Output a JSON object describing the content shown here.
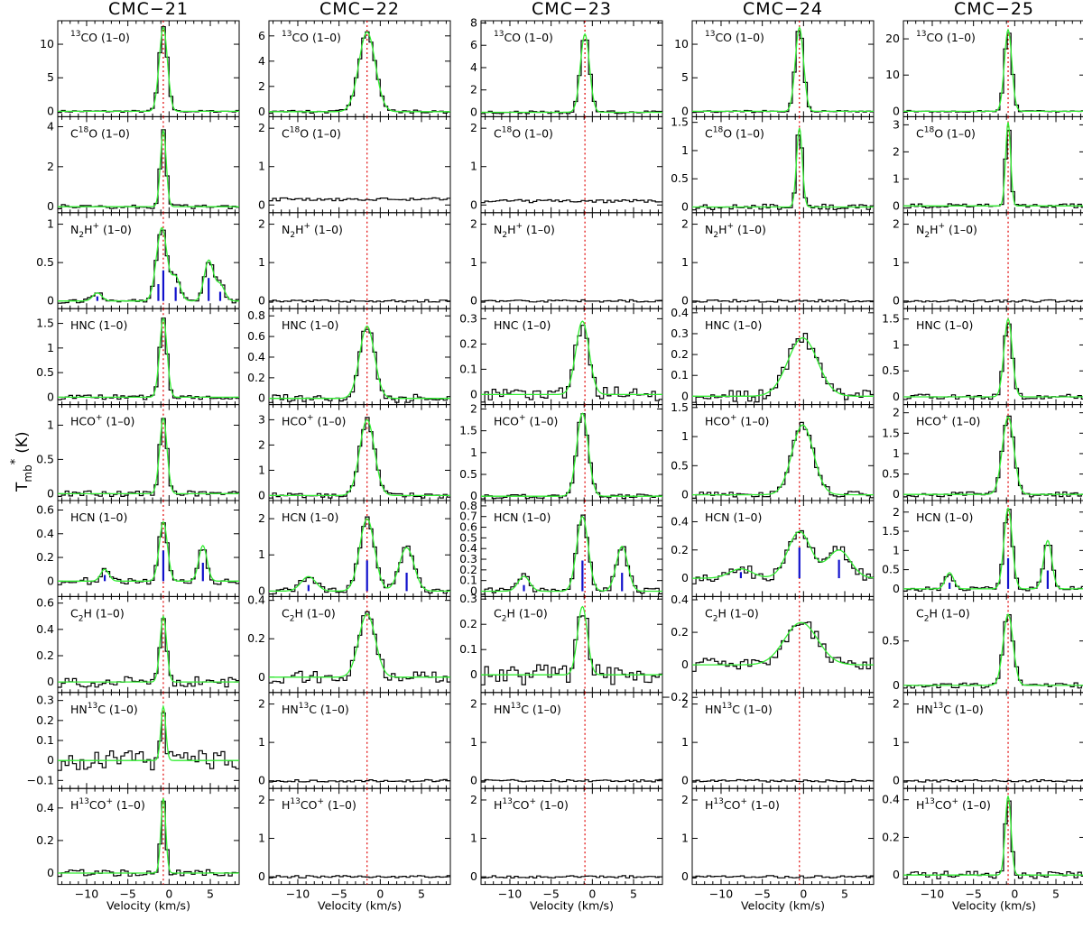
{
  "figure": {
    "y_label": "T",
    "y_label_sub": "mb",
    "y_label_sup": "*",
    "y_label_unit": "(K)",
    "x_label": "Velocity (km/s)",
    "colors": {
      "observed": "#000000",
      "fit": "#33ee33",
      "vsys_line": "#e00000",
      "hfs_components": "#1111cc"
    }
  },
  "chart_data": {
    "type": "line",
    "grid": false,
    "style": "step spectra with Gaussian / hyperfine fits",
    "xlim": [
      -13.5,
      8.5
    ],
    "x_ticks": [
      -10,
      -5,
      0,
      5
    ],
    "lines": [
      {
        "key": "13co",
        "label": [
          "",
          "13",
          "CO (1–0)"
        ]
      },
      {
        "key": "c18o",
        "label": [
          "C",
          "18",
          "O (1–0)"
        ]
      },
      {
        "key": "n2h",
        "label": [
          "N",
          "2",
          "H",
          "+",
          " (1–0)"
        ]
      },
      {
        "key": "hnc",
        "label": [
          "HNC (1–0)"
        ]
      },
      {
        "key": "hco",
        "label": [
          "HCO",
          "+",
          " (1–0)"
        ]
      },
      {
        "key": "hcn",
        "label": [
          "HCN (1–0)"
        ]
      },
      {
        "key": "c2h",
        "label": [
          "C",
          "2",
          "H (1–0)"
        ]
      },
      {
        "key": "hn13c",
        "label": [
          "HN",
          "13",
          "C (1–0)"
        ]
      },
      {
        "key": "h13co",
        "label": [
          "H",
          "13",
          "CO",
          "+",
          " (1–0)"
        ]
      }
    ],
    "sources": [
      {
        "name": "CMC−21",
        "vsys": -0.7,
        "spectra": {
          "13co": {
            "ylim": [
              -0.8,
              13.5
            ],
            "ticks": [
              0,
              5,
              10
            ],
            "fit": {
              "amp": 12.5,
              "v0": -0.7,
              "sigma": 0.5
            },
            "noise": 0.15
          },
          "c18o": {
            "ylim": [
              -0.3,
              4.5
            ],
            "ticks": [
              0,
              2,
              4
            ],
            "fit": {
              "amp": 3.8,
              "v0": -0.7,
              "sigma": 0.35
            },
            "noise": 0.1
          },
          "n2h": {
            "ylim": [
              -0.1,
              1.15
            ],
            "ticks": [
              0,
              0.5,
              1
            ],
            "hfs": true,
            "fit": {
              "amp": 0.7,
              "v0": -0.7,
              "sigma": 0.55
            },
            "noise": 0.03
          },
          "hnc": {
            "ylim": [
              -0.15,
              1.8
            ],
            "ticks": [
              0,
              0.5,
              1,
              1.5
            ],
            "fit": {
              "amp": 1.6,
              "v0": -0.7,
              "sigma": 0.45
            },
            "noise": 0.05
          },
          "hco": {
            "ylim": [
              -0.1,
              1.3
            ],
            "ticks": [
              0,
              0.5,
              1
            ],
            "fit": {
              "amp": 1.1,
              "v0": -0.7,
              "sigma": 0.45
            },
            "noise": 0.04
          },
          "hcn": {
            "ylim": [
              -0.13,
              0.68
            ],
            "ticks": [
              0,
              0.2,
              0.4,
              0.6
            ],
            "hfs": true,
            "fit": {
              "amp": 0.5,
              "v0": -0.7,
              "sigma": 0.5
            },
            "noise": 0.03
          },
          "c2h": {
            "ylim": [
              -0.08,
              0.65
            ],
            "ticks": [
              0,
              0.2,
              0.4,
              0.6
            ],
            "fit": {
              "amp": 0.5,
              "v0": -0.7,
              "sigma": 0.4
            },
            "noise": 0.04
          },
          "hn13c": {
            "ylim": [
              -0.14,
              0.34
            ],
            "ticks": [
              -0.1,
              0,
              0.1,
              0.2,
              0.3
            ],
            "fit": {
              "amp": 0.27,
              "v0": -0.7,
              "sigma": 0.3
            },
            "noise": 0.05
          },
          "h13co": {
            "ylim": [
              -0.07,
              0.52
            ],
            "ticks": [
              0,
              0.2,
              0.4
            ],
            "fit": {
              "amp": 0.46,
              "v0": -0.7,
              "sigma": 0.3
            },
            "noise": 0.02
          }
        }
      },
      {
        "name": "CMC−22",
        "vsys": -1.6,
        "spectra": {
          "13co": {
            "ylim": [
              -0.4,
              7.2
            ],
            "ticks": [
              0,
              2,
              4,
              6
            ],
            "fit": {
              "amp": 6.3,
              "v0": -1.6,
              "sigma": 1.0
            },
            "noise": 0.12
          },
          "c18o": {
            "ylim": [
              -0.2,
              2.3
            ],
            "ticks": [
              0,
              1,
              2
            ],
            "fit": null,
            "baseline": 0.15,
            "noise": 0.04
          },
          "n2h": {
            "ylim": [
              -0.2,
              2.3
            ],
            "ticks": [
              0,
              1,
              2
            ],
            "fit": null,
            "noise": 0.03
          },
          "hnc": {
            "ylim": [
              -0.06,
              0.87
            ],
            "ticks": [
              0,
              0.2,
              0.4,
              0.6,
              0.8
            ],
            "fit": {
              "amp": 0.7,
              "v0": -1.6,
              "sigma": 0.9
            },
            "noise": 0.04
          },
          "hco": {
            "ylim": [
              -0.2,
              3.6
            ],
            "ticks": [
              0,
              1,
              2,
              3
            ],
            "fit": {
              "amp": 3.0,
              "v0": -1.6,
              "sigma": 0.9
            },
            "noise": 0.1
          },
          "hcn": {
            "ylim": [
              -0.15,
              2.5
            ],
            "ticks": [
              0,
              1,
              2
            ],
            "hfs": true,
            "fit": {
              "amp": 2.0,
              "v0": -1.6,
              "sigma": 0.9
            },
            "noise": 0.08
          },
          "c2h": {
            "ylim": [
              -0.08,
              0.42
            ],
            "ticks": [
              0,
              0.2,
              0.4
            ],
            "fit": {
              "amp": 0.33,
              "v0": -1.6,
              "sigma": 1.0
            },
            "noise": 0.03
          },
          "hn13c": {
            "ylim": [
              -0.2,
              2.3
            ],
            "ticks": [
              0,
              1,
              2
            ],
            "fit": null,
            "noise": 0.03
          },
          "h13co": {
            "ylim": [
              -0.2,
              2.3
            ],
            "ticks": [
              0,
              1,
              2
            ],
            "fit": null,
            "noise": 0.03
          }
        }
      },
      {
        "name": "CMC−23",
        "vsys": -0.9,
        "spectra": {
          "13co": {
            "ylim": [
              -0.4,
              8.2
            ],
            "ticks": [
              0,
              2,
              4,
              6,
              8
            ],
            "fit": {
              "amp": 7.0,
              "v0": -0.9,
              "sigma": 0.55
            },
            "noise": 0.12
          },
          "c18o": {
            "ylim": [
              -0.2,
              2.3
            ],
            "ticks": [
              0,
              1,
              2
            ],
            "fit": null,
            "baseline": 0.1,
            "noise": 0.04
          },
          "n2h": {
            "ylim": [
              -0.2,
              2.3
            ],
            "ticks": [
              0,
              1,
              2
            ],
            "fit": null,
            "noise": 0.03
          },
          "hnc": {
            "ylim": [
              -0.04,
              0.34
            ],
            "ticks": [
              0,
              0.1,
              0.2,
              0.3
            ],
            "fit": {
              "amp": 0.29,
              "v0": -1.2,
              "sigma": 0.8
            },
            "noise": 0.03
          },
          "hco": {
            "ylim": [
              -0.1,
              2.1
            ],
            "ticks": [
              0,
              0.5,
              1,
              1.5,
              2
            ],
            "fit": {
              "amp": 1.9,
              "v0": -1.2,
              "sigma": 0.7
            },
            "noise": 0.06
          },
          "hcn": {
            "ylim": [
              -0.05,
              0.85
            ],
            "ticks": [
              0,
              0.1,
              0.2,
              0.3,
              0.4,
              0.5,
              0.6,
              0.7,
              0.8
            ],
            "hfs": true,
            "fit": {
              "amp": 0.7,
              "v0": -1.2,
              "sigma": 0.7
            },
            "noise": 0.03
          },
          "c2h": {
            "ylim": [
              -0.07,
              0.31
            ],
            "ticks": [
              0,
              0.1,
              0.2,
              0.3
            ],
            "fit": {
              "amp": 0.27,
              "v0": -1.2,
              "sigma": 0.6
            },
            "noise": 0.04
          },
          "hn13c": {
            "ylim": [
              -0.2,
              2.3
            ],
            "ticks": [
              0,
              1,
              2
            ],
            "fit": null,
            "noise": 0.03
          },
          "h13co": {
            "ylim": [
              -0.2,
              2.3
            ],
            "ticks": [
              0,
              1,
              2
            ],
            "fit": null,
            "noise": 0.03
          }
        }
      },
      {
        "name": "CMC−24",
        "vsys": -0.5,
        "spectra": {
          "13co": {
            "ylim": [
              -0.8,
              13.5
            ],
            "ticks": [
              0,
              5,
              10
            ],
            "fit": {
              "amp": 12.5,
              "v0": -0.5,
              "sigma": 0.5
            },
            "noise": 0.15
          },
          "c18o": {
            "ylim": [
              -0.1,
              1.6
            ],
            "ticks": [
              0,
              0.5,
              1,
              1.5
            ],
            "fit": {
              "amp": 1.4,
              "v0": -0.5,
              "sigma": 0.35
            },
            "noise": 0.05
          },
          "n2h": {
            "ylim": [
              -0.2,
              2.3
            ],
            "ticks": [
              0,
              1,
              2
            ],
            "fit": null,
            "noise": 0.03
          },
          "hnc": {
            "ylim": [
              -0.04,
              0.42
            ],
            "ticks": [
              0,
              0.1,
              0.2,
              0.3,
              0.4
            ],
            "fit": {
              "amp": 0.28,
              "v0": -0.1,
              "sigma": 1.8
            },
            "noise": 0.03
          },
          "hco": {
            "ylim": [
              -0.1,
              1.55
            ],
            "ticks": [
              0,
              0.5,
              1,
              1.5
            ],
            "fit": {
              "amp": 1.2,
              "v0": -0.1,
              "sigma": 1.3
            },
            "noise": 0.06
          },
          "hcn": {
            "ylim": [
              -0.13,
              0.55
            ],
            "ticks": [
              0,
              0.2,
              0.4
            ],
            "hfs": true,
            "fit": {
              "amp": 0.33,
              "v0": -0.5,
              "sigma": 1.4
            },
            "noise": 0.04
          },
          "c2h": {
            "ylim": [
              -0.17,
              0.42
            ],
            "ticks": [
              -0.2,
              0,
              0.2,
              0.4
            ],
            "fit": {
              "amp": 0.26,
              "v0": -0.3,
              "sigma": 2.0
            },
            "noise": 0.04
          },
          "hn13c": {
            "ylim": [
              -0.2,
              2.3
            ],
            "ticks": [
              0,
              1,
              2
            ],
            "fit": null,
            "noise": 0.03
          },
          "h13co": {
            "ylim": [
              -0.2,
              2.3
            ],
            "ticks": [
              0,
              1,
              2
            ],
            "fit": null,
            "noise": 0.03
          }
        }
      },
      {
        "name": "CMC−25",
        "vsys": -0.8,
        "spectra": {
          "13co": {
            "ylim": [
              -1.5,
              25
            ],
            "ticks": [
              0,
              10,
              20
            ],
            "fit": {
              "amp": 22.5,
              "v0": -0.8,
              "sigma": 0.45
            },
            "noise": 0.25
          },
          "c18o": {
            "ylim": [
              -0.25,
              3.3
            ],
            "ticks": [
              0,
              1,
              2,
              3
            ],
            "fit": {
              "amp": 3.1,
              "v0": -0.8,
              "sigma": 0.3
            },
            "noise": 0.08
          },
          "n2h": {
            "ylim": [
              -0.2,
              2.3
            ],
            "ticks": [
              0,
              1,
              2
            ],
            "fit": null,
            "noise": 0.03
          },
          "hnc": {
            "ylim": [
              -0.15,
              1.7
            ],
            "ticks": [
              0,
              0.5,
              1,
              1.5
            ],
            "fit": {
              "amp": 1.5,
              "v0": -0.8,
              "sigma": 0.5
            },
            "noise": 0.05
          },
          "hco": {
            "ylim": [
              -0.15,
              2.2
            ],
            "ticks": [
              0,
              0.5,
              1,
              1.5,
              2
            ],
            "fit": {
              "amp": 1.9,
              "v0": -0.8,
              "sigma": 0.7
            },
            "noise": 0.06
          },
          "hcn": {
            "ylim": [
              -0.2,
              2.3
            ],
            "ticks": [
              0,
              0.5,
              1,
              1.5,
              2
            ],
            "hfs": true,
            "fit": {
              "amp": 2.1,
              "v0": -0.8,
              "sigma": 0.5
            },
            "noise": 0.06
          },
          "c2h": {
            "ylim": [
              -0.08,
              1.0
            ],
            "ticks": [
              0,
              0.5
            ],
            "fit": {
              "amp": 0.8,
              "v0": -0.8,
              "sigma": 0.6
            },
            "noise": 0.03
          },
          "hn13c": {
            "ylim": [
              -0.2,
              2.3
            ],
            "ticks": [
              0,
              1,
              2
            ],
            "fit": null,
            "noise": 0.03
          },
          "h13co": {
            "ylim": [
              -0.05,
              0.46
            ],
            "ticks": [
              0,
              0.2,
              0.4
            ],
            "fit": {
              "amp": 0.42,
              "v0": -0.8,
              "sigma": 0.35
            },
            "noise": 0.02
          }
        }
      }
    ]
  }
}
